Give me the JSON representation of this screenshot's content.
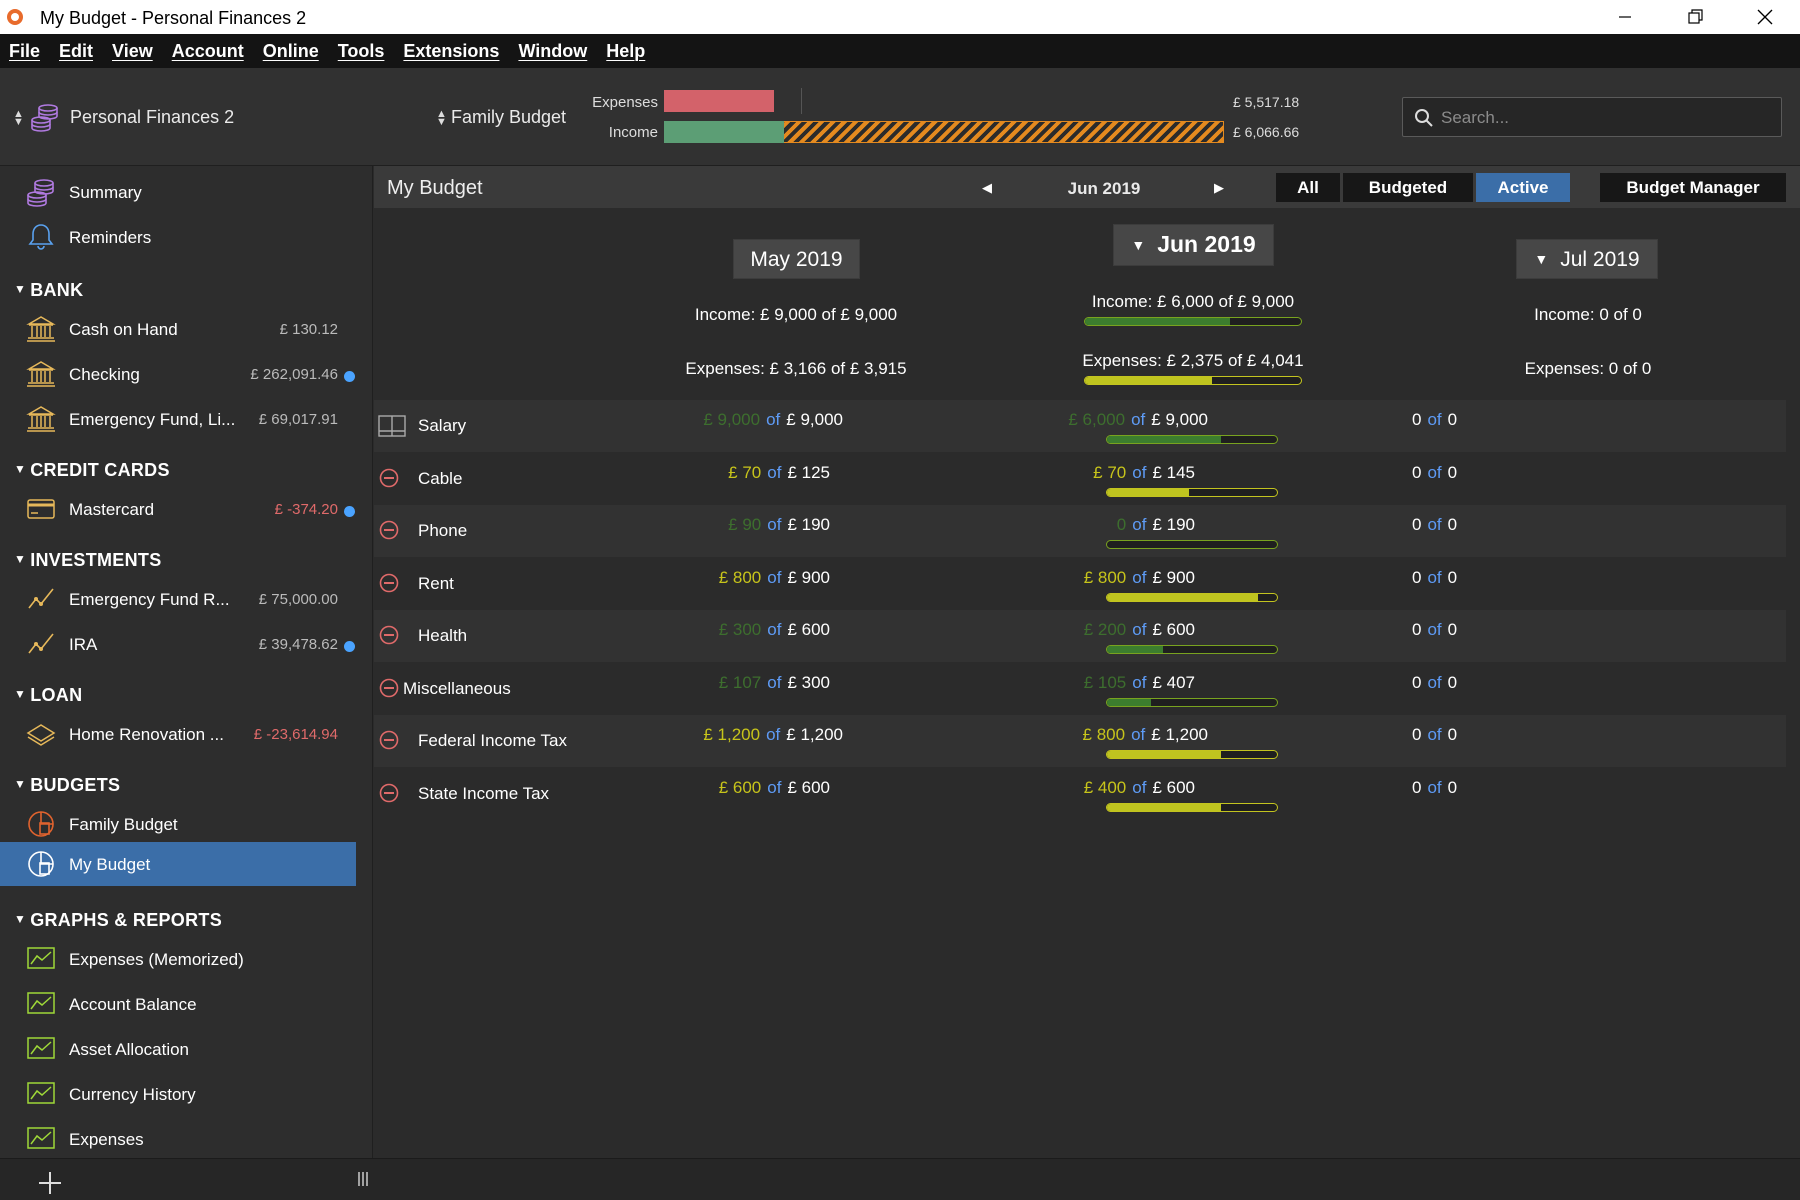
{
  "window": {
    "title": "My Budget - Personal Finances 2",
    "icons": [
      "app-logo-icon",
      "minimize-icon",
      "restore-icon",
      "close-icon"
    ]
  },
  "menu": [
    "File",
    "Edit",
    "View",
    "Account",
    "Online",
    "Tools",
    "Extensions",
    "Window",
    "Help"
  ],
  "topbar": {
    "account": "Personal Finances 2",
    "budget": "Family Budget",
    "expenses_label": "Expenses",
    "income_label": "Income",
    "expenses_value": "£ 5,517.18",
    "income_value": "£ 6,066.66",
    "search_placeholder": "Search..."
  },
  "sidebar": {
    "summary": "Summary",
    "reminders": "Reminders",
    "bank_header": "BANK",
    "bank": [
      {
        "label": "Cash on Hand",
        "value": "£ 130.12"
      },
      {
        "label": "Checking",
        "value": "£ 262,091.46"
      },
      {
        "label": "Emergency Fund, Li...",
        "value": "£ 69,017.91"
      }
    ],
    "cc_header": "CREDIT CARDS",
    "cc": [
      {
        "label": "Mastercard",
        "value": "£ -374.20"
      }
    ],
    "inv_header": "INVESTMENTS",
    "inv": [
      {
        "label": "Emergency Fund R...",
        "value": "£ 75,000.00"
      },
      {
        "label": "IRA",
        "value": "£ 39,478.62"
      }
    ],
    "loan_header": "LOAN",
    "loan": [
      {
        "label": "Home Renovation ...",
        "value": "£ -23,614.94"
      }
    ],
    "budgets_header": "BUDGETS",
    "budgets": [
      "Family Budget",
      "My Budget"
    ],
    "reports_header": "GRAPHS & REPORTS",
    "reports": [
      "Expenses (Memorized)",
      "Account Balance",
      "Asset Allocation",
      "Currency History",
      "Expenses"
    ]
  },
  "main": {
    "title": "My Budget",
    "period": "Jun 2019",
    "filters": [
      "All",
      "Budgeted",
      "Active"
    ],
    "active_filter": "Active",
    "manager": "Budget Manager",
    "months": [
      {
        "label": "May 2019",
        "income": "Income: £ 9,000 of £ 9,000",
        "expenses": "Expenses: £ 3,166 of £ 3,915"
      },
      {
        "label": "Jun 2019",
        "income": "Income: £ 6,000 of £ 9,000",
        "expenses": "Expenses: £ 2,375 of £ 4,041"
      },
      {
        "label": "Jul 2019",
        "income": "Income: 0 of 0",
        "expenses": "Expenses: 0 of 0"
      }
    ],
    "of": "of",
    "rows": [
      {
        "label": "Salary",
        "may_spent": "£ 9,000",
        "may_total": "£ 9,000",
        "jun_spent": "£ 6,000",
        "jun_total": "£ 9,000",
        "jul_spent": "0",
        "jul_total": "0"
      },
      {
        "label": "Cable",
        "may_spent": "£ 70",
        "may_total": "£ 125",
        "jun_spent": "£ 70",
        "jun_total": "£ 145",
        "jul_spent": "0",
        "jul_total": "0"
      },
      {
        "label": "Phone",
        "may_spent": "£ 90",
        "may_total": "£ 190",
        "jun_spent": "0",
        "jun_total": "£ 190",
        "jul_spent": "0",
        "jul_total": "0"
      },
      {
        "label": "Rent",
        "may_spent": "£ 800",
        "may_total": "£ 900",
        "jun_spent": "£ 800",
        "jun_total": "£ 900",
        "jul_spent": "0",
        "jul_total": "0"
      },
      {
        "label": "Health",
        "may_spent": "£ 300",
        "may_total": "£ 600",
        "jun_spent": "£ 200",
        "jun_total": "£ 600",
        "jul_spent": "0",
        "jul_total": "0"
      },
      {
        "label": "Miscellaneous",
        "may_spent": "£ 107",
        "may_total": "£ 300",
        "jun_spent": "£ 105",
        "jun_total": "£ 407",
        "jul_spent": "0",
        "jul_total": "0"
      },
      {
        "label": "Federal Income Tax",
        "may_spent": "£ 1,200",
        "may_total": "£ 1,200",
        "jun_spent": "£ 800",
        "jun_total": "£ 1,200",
        "jul_spent": "0",
        "jul_total": "0"
      },
      {
        "label": "State Income Tax",
        "may_spent": "£ 600",
        "may_total": "£ 600",
        "jun_spent": "£ 400",
        "jun_total": "£ 600",
        "jul_spent": "0",
        "jul_total": "0"
      }
    ],
    "jun_progress": [
      0.67,
      0.48,
      0.0,
      0.89,
      0.33,
      0.26,
      0.67,
      0.67
    ],
    "jun_income_progress": 0.67,
    "jun_expense_progress": 0.59
  },
  "colors": {
    "accent": "#3b6ea8",
    "expense": "#d3626a",
    "income": "#5c9e75",
    "over": "#e48a1f",
    "underSpent": "#3d6e2e",
    "warn": "#c7c41b"
  }
}
